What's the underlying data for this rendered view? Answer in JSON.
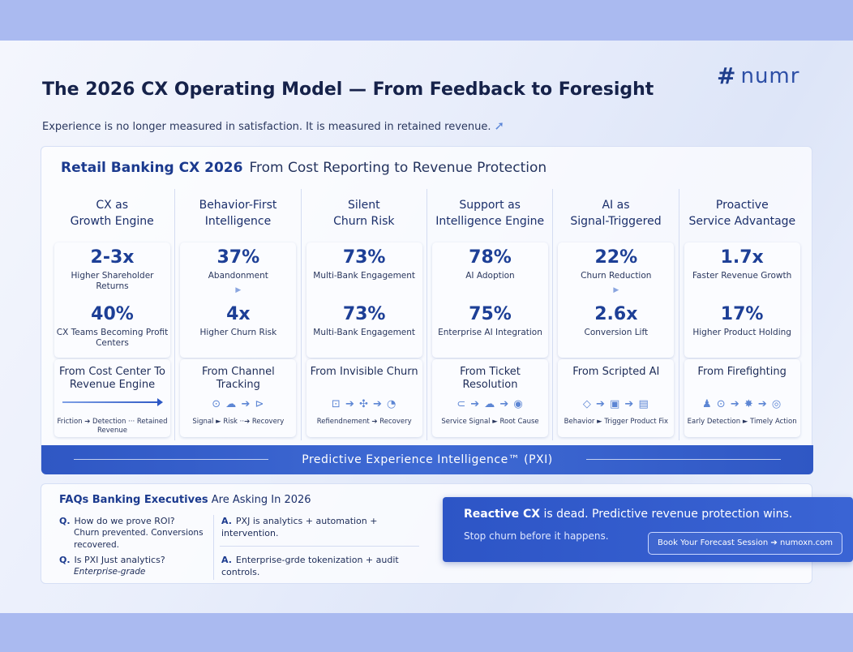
{
  "header": {
    "title": "The 2026 CX Operating Model — From Feedback to Foresight",
    "subtitle": "Experience is no longer measured in satisfaction. It is measured in retained revenue.",
    "logo_text": "numr"
  },
  "main": {
    "heading_bold": "Retail Banking CX 2026",
    "heading_rest": "From Cost Reporting to Revenue Protection",
    "columns": [
      {
        "title_line1": "CX as",
        "title_line2": "Growth Engine",
        "stat1_value": "2-3x",
        "stat1_label": "Higher Shareholder Returns",
        "stat2_value": "40%",
        "stat2_label": "CX Teams Becoming Profit Centers",
        "shift_title": "From Cost Center To Revenue Engine",
        "flow": "Friction ➔ Detection ··· Retained Revenue"
      },
      {
        "title_line1": "Behavior-First",
        "title_line2": "Intelligence",
        "stat1_value": "37%",
        "stat1_label": "Abandonment",
        "stat2_value": "4x",
        "stat2_label": "Higher Churn Risk",
        "shift_title": "From Channel Tracking",
        "flow": "Signal ► Risk ··➔ Recovery"
      },
      {
        "title_line1": "Silent",
        "title_line2": "Churn Risk",
        "stat1_value": "73%",
        "stat1_label": "Multi-Bank Engagement",
        "stat2_value": "73%",
        "stat2_label": "Multi-Bank Engagement",
        "shift_title": "From Invisible Churn",
        "flow": "Refiendnement ➔ Recovery"
      },
      {
        "title_line1": "Support as",
        "title_line2": "Intelligence Engine",
        "stat1_value": "78%",
        "stat1_label": "AI Adoption",
        "stat2_value": "75%",
        "stat2_label": "Enterprise AI Integration",
        "shift_title": "From Ticket Resolution",
        "flow": "Service Signal ► Root Cause"
      },
      {
        "title_line1": "AI as",
        "title_line2": "Signal-Triggered",
        "stat1_value": "22%",
        "stat1_label": "Churn Reduction",
        "stat2_value": "2.6x",
        "stat2_label": "Conversion Lift",
        "shift_title": "From Scripted AI",
        "flow": "Behavior ► Trigger Product Fix"
      },
      {
        "title_line1": "Proactive",
        "title_line2": "Service Advantage",
        "stat1_value": "1.7x",
        "stat1_label": "Faster Revenue Growth",
        "stat2_value": "17%",
        "stat2_label": "Higher Product Holding",
        "shift_title": "From Firefighting",
        "flow": "Early Detection ► Timely Action"
      }
    ],
    "pxi_band": "Predictive Experience Intelligence™ (PXI)"
  },
  "faq": {
    "heading_bold": "FAQs Banking Executives",
    "heading_rest": "Are Asking In 2026",
    "q1_mark": "Q.",
    "q1": "How do we prove ROI?",
    "q1_detail": "Churn prevented. Conversions recovered.",
    "a1_mark": "A.",
    "a1": "PXJ is analytics + automation + intervention.",
    "q2_mark": "Q.",
    "q2": "Is PXI Just analytics?",
    "q2_detail": "Enterprise-grade",
    "a2_mark": "A.",
    "a2": "Enterprise-grde tokenization + audit controls."
  },
  "cta": {
    "main_bold": "Reactive CX",
    "main_rest": "is dead. Predictive revenue protection wins.",
    "sub": "Stop churn before it happens.",
    "button": "Book Your Forecast Session ➔ numoxn.com"
  },
  "colors": {
    "accent": "#1d3f96",
    "band": "#2f57c4",
    "background": "#aebdf0"
  }
}
